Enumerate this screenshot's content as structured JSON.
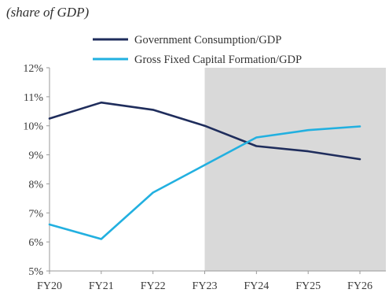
{
  "subtitle": "(share of GDP)",
  "chart_data": {
    "type": "line",
    "title": "",
    "subtitle": "(share of GDP)",
    "xlabel": "",
    "ylabel": "",
    "categories": [
      "FY20",
      "FY21",
      "FY22",
      "FY23",
      "FY24",
      "FY25",
      "FY26"
    ],
    "ylim": [
      5,
      12
    ],
    "yticks": [
      5,
      6,
      7,
      8,
      9,
      10,
      11,
      12
    ],
    "ytick_labels": [
      "5%",
      "6%",
      "7%",
      "8%",
      "9%",
      "10%",
      "11%",
      "12%"
    ],
    "grid": false,
    "legend_position": "top",
    "shaded_region": {
      "from": "FY23",
      "to": "FY26",
      "color": "#d9d9d9"
    },
    "series": [
      {
        "name": "Government Consumption/GDP",
        "color": "#1f2d5c",
        "values": [
          10.25,
          10.8,
          10.55,
          10.0,
          9.3,
          9.12,
          8.85
        ]
      },
      {
        "name": "Gross Fixed Capital Formation/GDP",
        "color": "#22b0e0",
        "values": [
          6.6,
          6.1,
          7.7,
          8.65,
          9.6,
          9.85,
          9.98
        ]
      }
    ]
  }
}
